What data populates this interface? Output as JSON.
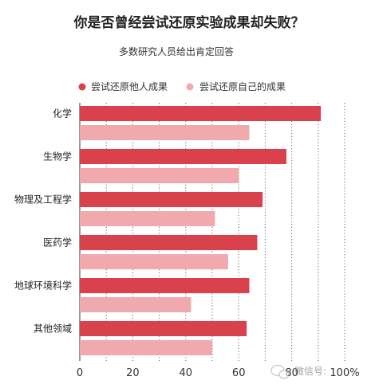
{
  "chart_data": {
    "type": "bar",
    "orientation": "horizontal",
    "title": "你是否曾经尝试还原实验成果却失败？",
    "subtitle": "多数研究人员给出肯定回答",
    "categories": [
      "化学",
      "生物学",
      "物理及工程学",
      "医药学",
      "地球环境科学",
      "其他领域"
    ],
    "series": [
      {
        "name": "尝试还原他人成果",
        "color": "#d9424c",
        "values": [
          91,
          78,
          69,
          67,
          64,
          63
        ]
      },
      {
        "name": "尝试还原自己的成果",
        "color": "#f0a9ad",
        "values": [
          64,
          60,
          51,
          56,
          42,
          50
        ]
      }
    ],
    "x_ticks": [
      "0",
      "20",
      "40",
      "60",
      "80",
      "100%"
    ],
    "xlim": [
      0,
      100
    ],
    "grid": "vertical dotted",
    "legend": "top-left"
  },
  "watermark": {
    "text": "微信号:"
  },
  "colors": {
    "background": "#ffffff",
    "title": "#222222",
    "gridline": "#555555"
  }
}
